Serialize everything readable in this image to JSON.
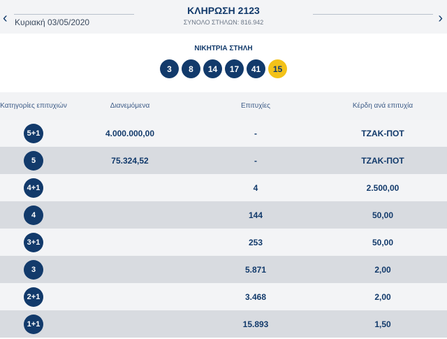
{
  "header": {
    "prev_date": "Κυριακή 03/05/2020",
    "title": "ΚΛΗΡΩΣΗ 2123",
    "subtitle": "ΣΥΝΟΛΟ ΣΤΗΛΩΝ: 816.942",
    "prev_icon": "chevron-left-icon",
    "next_icon": "chevron-right-icon"
  },
  "winning": {
    "label": "ΝΙΚΗΤΡΙΑ ΣΤΗΛΗ",
    "numbers": [
      "3",
      "8",
      "14",
      "17",
      "41"
    ],
    "bonus": "15"
  },
  "table": {
    "headers": [
      "Κατηγορίες επιτυχιών",
      "Διανεμόμενα",
      "Επιτυχίες",
      "Κέρδη ανά επιτυχία"
    ],
    "rows": [
      {
        "cat": "5+1",
        "distributed": "4.000.000,00",
        "winners": "-",
        "prize": "ΤΖΑΚ-ΠΟΤ"
      },
      {
        "cat": "5",
        "distributed": "75.324,52",
        "winners": "-",
        "prize": "ΤΖΑΚ-ΠΟΤ"
      },
      {
        "cat": "4+1",
        "distributed": "",
        "winners": "4",
        "prize": "2.500,00"
      },
      {
        "cat": "4",
        "distributed": "",
        "winners": "144",
        "prize": "50,00"
      },
      {
        "cat": "3+1",
        "distributed": "",
        "winners": "253",
        "prize": "50,00"
      },
      {
        "cat": "3",
        "distributed": "",
        "winners": "5.871",
        "prize": "2,00"
      },
      {
        "cat": "2+1",
        "distributed": "",
        "winners": "3.468",
        "prize": "2,00"
      },
      {
        "cat": "1+1",
        "distributed": "",
        "winners": "15.893",
        "prize": "1,50"
      }
    ]
  },
  "colors": {
    "primary": "#123a6b",
    "bonus_ball": "#f3c219",
    "row_light": "#f3f4f6",
    "row_dark": "#d8dbe0"
  }
}
